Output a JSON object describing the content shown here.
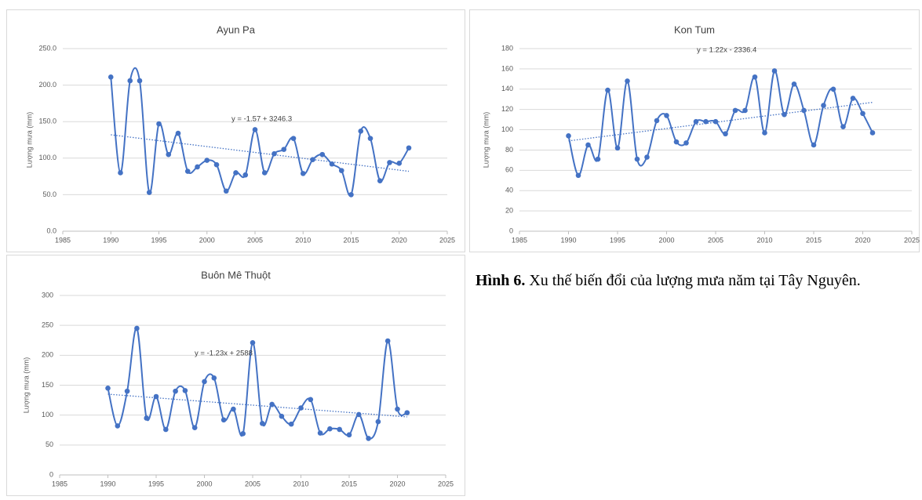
{
  "chart_data": [
    {
      "type": "line",
      "title": "Ayun Pa",
      "y_label": "Lượng mưa (mm)",
      "annotation": "y = -1.57 + 3246.3",
      "color": "#4472c4",
      "grid": true,
      "x": [
        1990,
        1991,
        1992,
        1993,
        1994,
        1995,
        1996,
        1997,
        1998,
        1999,
        2000,
        2001,
        2002,
        2003,
        2004,
        2005,
        2006,
        2007,
        2008,
        2009,
        2010,
        2011,
        2012,
        2013,
        2014,
        2015,
        2016,
        2017,
        2018,
        2019,
        2020,
        2021
      ],
      "values": [
        211,
        80,
        206,
        206,
        53,
        147,
        105,
        134,
        82,
        88,
        97,
        91,
        55,
        80,
        77,
        139,
        80,
        106,
        112,
        127,
        79,
        98,
        105,
        92,
        83,
        50,
        137,
        127,
        69,
        94,
        93,
        114
      ],
      "trend": {
        "x": [
          1990,
          2021
        ],
        "values": [
          132,
          82
        ]
      },
      "xlim": [
        1985,
        2025
      ],
      "xticks": [
        1985,
        1990,
        1995,
        2000,
        2005,
        2010,
        2015,
        2020,
        2025
      ],
      "ylim": [
        0,
        250
      ],
      "yticks": [
        {
          "value": 0,
          "label": "0.0"
        },
        {
          "value": 50,
          "label": "50.0"
        },
        {
          "value": 100,
          "label": "100.0"
        },
        {
          "value": 150,
          "label": "150.0"
        },
        {
          "value": 200,
          "label": "200.0"
        },
        {
          "value": 250,
          "label": "250.0"
        }
      ]
    },
    {
      "type": "line",
      "title": "Kon Tum",
      "y_label": "Lượng mưa (mm)",
      "annotation": "y = 1.22x - 2336.4",
      "color": "#4472c4",
      "grid": true,
      "x": [
        1990,
        1991,
        1992,
        1993,
        1994,
        1995,
        1996,
        1997,
        1998,
        1999,
        2000,
        2001,
        2002,
        2003,
        2004,
        2005,
        2006,
        2007,
        2008,
        2009,
        2010,
        2011,
        2012,
        2013,
        2014,
        2015,
        2016,
        2017,
        2018,
        2019,
        2020,
        2021
      ],
      "values": [
        94,
        55,
        85,
        71,
        139,
        82,
        148,
        71,
        73,
        109,
        114,
        88,
        87,
        108,
        108,
        108,
        96,
        119,
        119,
        152,
        97,
        158,
        115,
        145,
        119,
        85,
        124,
        140,
        103,
        131,
        116,
        97
      ],
      "trend": {
        "x": [
          1990,
          2021
        ],
        "values": [
          89,
          127
        ]
      },
      "xlim": [
        1985,
        2025
      ],
      "xticks": [
        1985,
        1990,
        1995,
        2000,
        2005,
        2010,
        2015,
        2020,
        2025
      ],
      "ylim": [
        0,
        180
      ],
      "yticks": [
        0,
        20,
        40,
        60,
        80,
        100,
        120,
        140,
        160,
        180
      ]
    },
    {
      "type": "line",
      "title": "Buôn Mê Thuột",
      "y_label": "Lượng mưa (mm)",
      "annotation": "y = -1.23x + 2588",
      "color": "#4472c4",
      "grid": true,
      "x": [
        1990,
        1991,
        1992,
        1993,
        1994,
        1995,
        1996,
        1997,
        1998,
        1999,
        2000,
        2001,
        2002,
        2003,
        2004,
        2005,
        2006,
        2007,
        2008,
        2009,
        2010,
        2011,
        2012,
        2013,
        2014,
        2015,
        2016,
        2017,
        2018,
        2019,
        2020,
        2021
      ],
      "values": [
        145,
        82,
        140,
        245,
        95,
        131,
        76,
        140,
        141,
        79,
        156,
        162,
        92,
        110,
        69,
        221,
        86,
        118,
        98,
        85,
        112,
        126,
        70,
        77,
        76,
        67,
        101,
        61,
        89,
        224,
        110,
        104
      ],
      "trend": {
        "x": [
          1990,
          2021
        ],
        "values": [
          135,
          97
        ]
      },
      "xlim": [
        1985,
        2025
      ],
      "xticks": [
        1985,
        1990,
        1995,
        2000,
        2005,
        2010,
        2015,
        2020,
        2025
      ],
      "ylim": [
        0,
        300
      ],
      "yticks": [
        0,
        50,
        100,
        150,
        200,
        250,
        300
      ]
    }
  ],
  "caption": {
    "label": "Hình 6.",
    "text": "Xu thế biến đổi của lượng mưa năm tại Tây Nguyên."
  }
}
